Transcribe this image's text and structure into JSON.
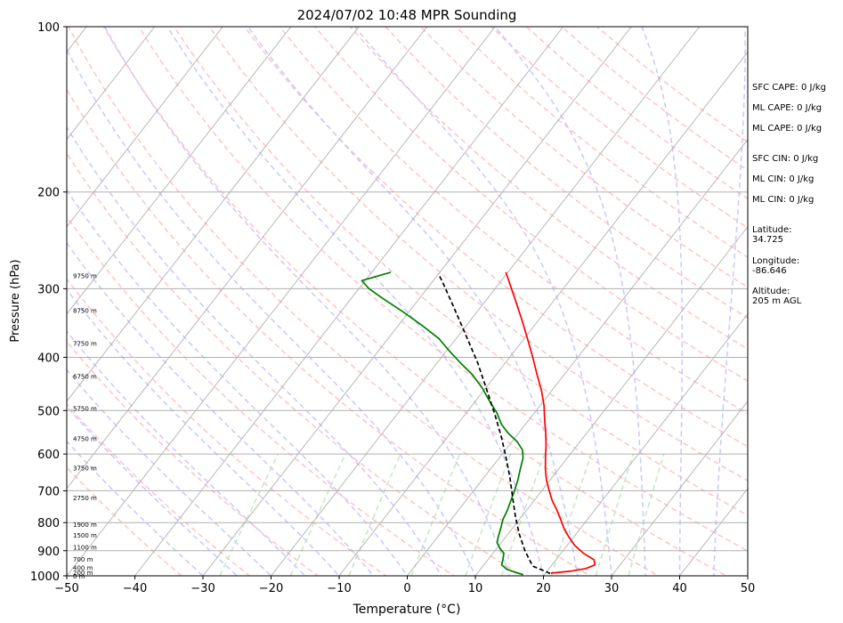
{
  "chart_data": {
    "type": "skew-t",
    "title": "2024/07/02 10:48 MPR Sounding",
    "xlabel": "Temperature (°C)",
    "ylabel": "Pressure (hPa)",
    "xlim": [
      -50,
      50
    ],
    "ylim": [
      1000,
      100
    ],
    "y_scale": "log",
    "x_ticks": [
      -50,
      -40,
      -30,
      -20,
      -10,
      0,
      10,
      20,
      30,
      40,
      50
    ],
    "y_ticks": [
      1000,
      900,
      800,
      700,
      600,
      500,
      400,
      300,
      200,
      100
    ],
    "grid": true,
    "height_labels": [
      {
        "p": 1000,
        "label": "0 m"
      },
      {
        "p": 985,
        "label": "200 m"
      },
      {
        "p": 965,
        "label": "400 m"
      },
      {
        "p": 931,
        "label": "700 m"
      },
      {
        "p": 885,
        "label": "1100 m"
      },
      {
        "p": 843,
        "label": "1500 m"
      },
      {
        "p": 805,
        "label": "1900 m"
      },
      {
        "p": 720,
        "label": "2750 m"
      },
      {
        "p": 635,
        "label": "3750 m"
      },
      {
        "p": 562,
        "label": "4750 m"
      },
      {
        "p": 495,
        "label": "5750 m"
      },
      {
        "p": 433,
        "label": "6750 m"
      },
      {
        "p": 377,
        "label": "7750 m"
      },
      {
        "p": 328,
        "label": "8750 m"
      },
      {
        "p": 284,
        "label": "9750 m"
      }
    ],
    "series": [
      {
        "kind": "temperature",
        "color": "#ff0000",
        "points": [
          [
            20.8,
            989
          ],
          [
            23.6,
            980
          ],
          [
            25.4,
            970
          ],
          [
            26.3,
            955
          ],
          [
            25.6,
            935
          ],
          [
            23.3,
            910
          ],
          [
            21.1,
            880
          ],
          [
            19.3,
            850
          ],
          [
            17.6,
            820
          ],
          [
            16.1,
            790
          ],
          [
            14.5,
            760
          ],
          [
            12.7,
            730
          ],
          [
            11.1,
            700
          ],
          [
            9.5,
            670
          ],
          [
            8.1,
            640
          ],
          [
            6.8,
            610
          ],
          [
            5.5,
            580
          ],
          [
            4.0,
            550
          ],
          [
            2.3,
            520
          ],
          [
            0.6,
            490
          ],
          [
            -1.5,
            460
          ],
          [
            -4.0,
            430
          ],
          [
            -6.6,
            400
          ],
          [
            -9.5,
            370
          ],
          [
            -12.7,
            340
          ],
          [
            -16.3,
            310
          ],
          [
            -20.3,
            280
          ]
        ]
      },
      {
        "kind": "dewpoint",
        "color": "#008000",
        "points": [
          [
            16.9,
            995
          ],
          [
            15.4,
            985
          ],
          [
            13.8,
            972
          ],
          [
            12.6,
            955
          ],
          [
            12.2,
            935
          ],
          [
            11.6,
            910
          ],
          [
            10.4,
            890
          ],
          [
            9.4,
            870
          ],
          [
            8.9,
            850
          ],
          [
            8.3,
            820
          ],
          [
            7.6,
            790
          ],
          [
            7.2,
            760
          ],
          [
            6.6,
            730
          ],
          [
            6.0,
            700
          ],
          [
            5.3,
            670
          ],
          [
            4.4,
            640
          ],
          [
            3.5,
            610
          ],
          [
            2.5,
            590
          ],
          [
            0.8,
            570
          ],
          [
            -1.5,
            550
          ],
          [
            -3.5,
            530
          ],
          [
            -5.5,
            505
          ],
          [
            -8.0,
            480
          ],
          [
            -10.5,
            455
          ],
          [
            -13.5,
            430
          ],
          [
            -16.5,
            410
          ],
          [
            -19.5,
            390
          ],
          [
            -22.5,
            370
          ],
          [
            -26.5,
            350
          ],
          [
            -31.0,
            330
          ],
          [
            -35.5,
            312
          ],
          [
            -38.5,
            300
          ],
          [
            -40.5,
            290
          ],
          [
            -37.2,
            280
          ]
        ]
      },
      {
        "kind": "parcel",
        "color": "#000000",
        "points": [
          [
            20.7,
            990
          ],
          [
            17.3,
            960
          ],
          [
            14.4,
            900
          ],
          [
            11.7,
            840
          ],
          [
            9.1,
            780
          ],
          [
            6.5,
            720
          ],
          [
            3.7,
            660
          ],
          [
            1.0,
            610
          ],
          [
            -2.0,
            560
          ],
          [
            -5.5,
            510
          ],
          [
            -9.5,
            460
          ],
          [
            -14.0,
            410
          ],
          [
            -19.5,
            360
          ],
          [
            -24.5,
            320
          ],
          [
            -28.0,
            295
          ],
          [
            -30.0,
            282
          ]
        ]
      }
    ],
    "background_lines": [
      {
        "kind": "isotherm",
        "color": "#b0b0b0"
      },
      {
        "kind": "dry-adiabat",
        "color": "#ffc4c4"
      },
      {
        "kind": "moist-adiabat",
        "color": "#c8c8ff"
      },
      {
        "kind": "mixing-ratio",
        "color": "#c4e6c4"
      }
    ]
  },
  "annotations": {
    "sfc_cape": "SFC CAPE: 0 J/kg",
    "ml_cape_1": "ML CAPE: 0 J/kg",
    "ml_cape_2": "ML CAPE: 0 J/kg",
    "sfc_cin": "SFC CIN: 0 J/kg",
    "ml_cin_1": "ML CIN: 0 J/kg",
    "ml_cin_2": "ML CIN: 0 J/kg",
    "latitude_label": "Latitude:",
    "latitude_value": "34.725",
    "longitude_label": "Longitude:",
    "longitude_value": "-86.646",
    "altitude_label": "Altitude:",
    "altitude_value": "205 m AGL"
  }
}
